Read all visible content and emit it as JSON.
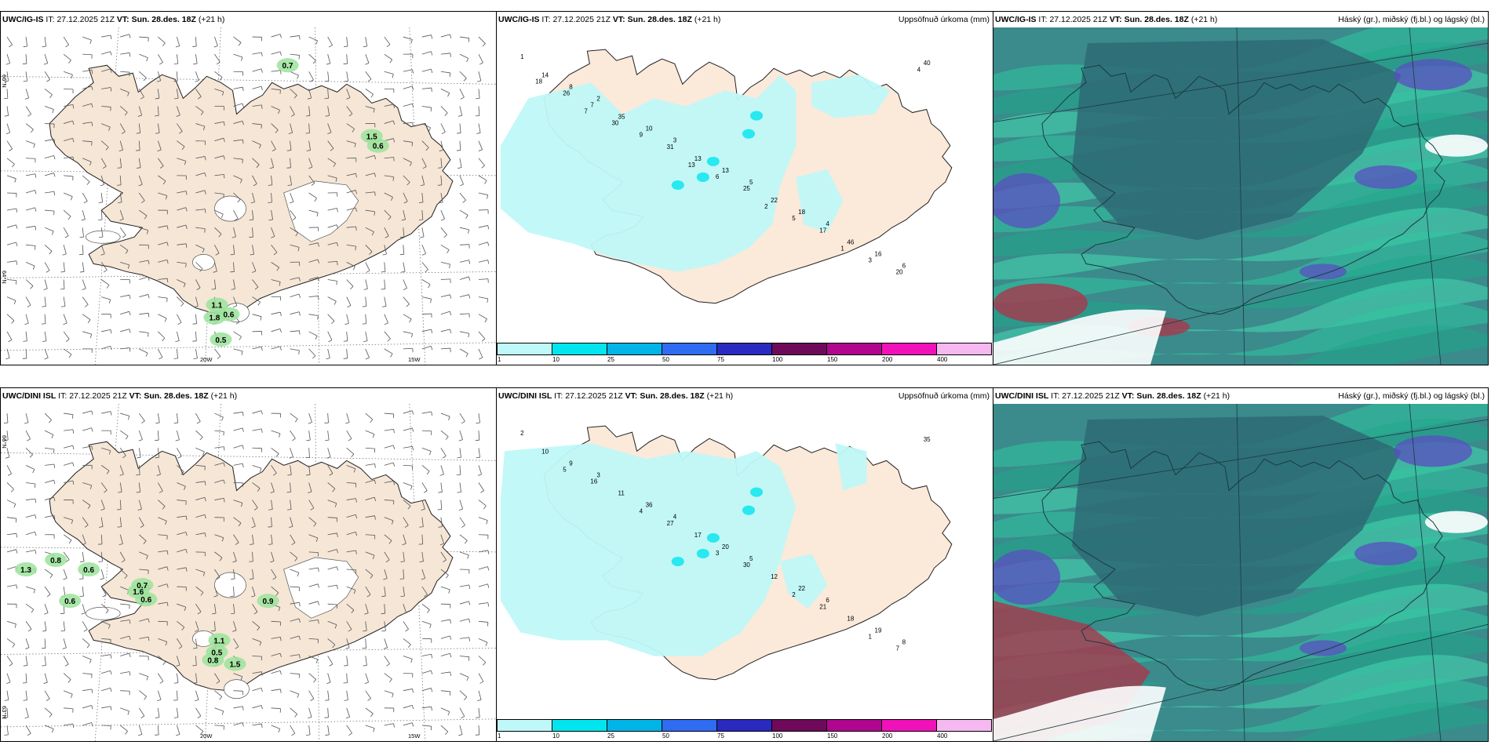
{
  "header_common": {
    "it_label": "IT:",
    "it_value": "27.12.2025 21Z",
    "vt_label": "VT:",
    "vt_value": "Sun. 28.des. 18Z",
    "lead": "(+21 h)"
  },
  "rows": [
    {
      "model": "UWC/IG-IS"
    },
    {
      "model": "UWC/DINI ISL"
    }
  ],
  "titles": {
    "precip": "Uppsöfnuð úrkoma (mm)",
    "cloud": "Háský (gr.), miðský (fj.bl.) og lágský (bl.)"
  },
  "colorbar": {
    "colors": [
      "#bff8f8",
      "#00e5ee",
      "#00b4e8",
      "#2f6cf2",
      "#2a2ac0",
      "#6e0a5a",
      "#b0068f",
      "#f012b8",
      "#f5b8f0"
    ],
    "ticks": [
      "1",
      "10",
      "25",
      "50",
      "75",
      "100",
      "150",
      "200",
      "400"
    ]
  },
  "axis_labels": {
    "lon_20": "20W",
    "lon_15": "15W",
    "lat_66": "66°N",
    "lat_64": "64°N",
    "lat_63": "63°N"
  },
  "wind_panel": {
    "row1_values": [
      "0.7",
      "1.1",
      "1.8",
      "0.6",
      "0.5",
      "1.5",
      "0.6"
    ],
    "row2_values": [
      "0.8",
      "1.3",
      "0.6",
      "0.7",
      "1.6",
      "0.6",
      "1.1",
      "0.5",
      "0.8",
      "0.9",
      "0.6",
      "1.5"
    ]
  },
  "precip_values": {
    "row1": [
      "1",
      "2",
      "3",
      "5",
      "4",
      "6",
      "8",
      "10",
      "13",
      "18",
      "16",
      "14",
      "35",
      "13",
      "22",
      "46",
      "40",
      "7",
      "31",
      "25",
      "17",
      "20",
      "26",
      "9",
      "6",
      "5",
      "3",
      "18",
      "30",
      "13",
      "2",
      "1",
      "4",
      "7"
    ],
    "row2": [
      "2",
      "3",
      "4",
      "5",
      "6",
      "8",
      "9",
      "36",
      "20",
      "22",
      "19",
      "10",
      "11",
      "17",
      "12",
      "18",
      "35",
      "16",
      "27",
      "30",
      "21",
      "7",
      "5",
      "4",
      "3",
      "2",
      "1"
    ]
  }
}
